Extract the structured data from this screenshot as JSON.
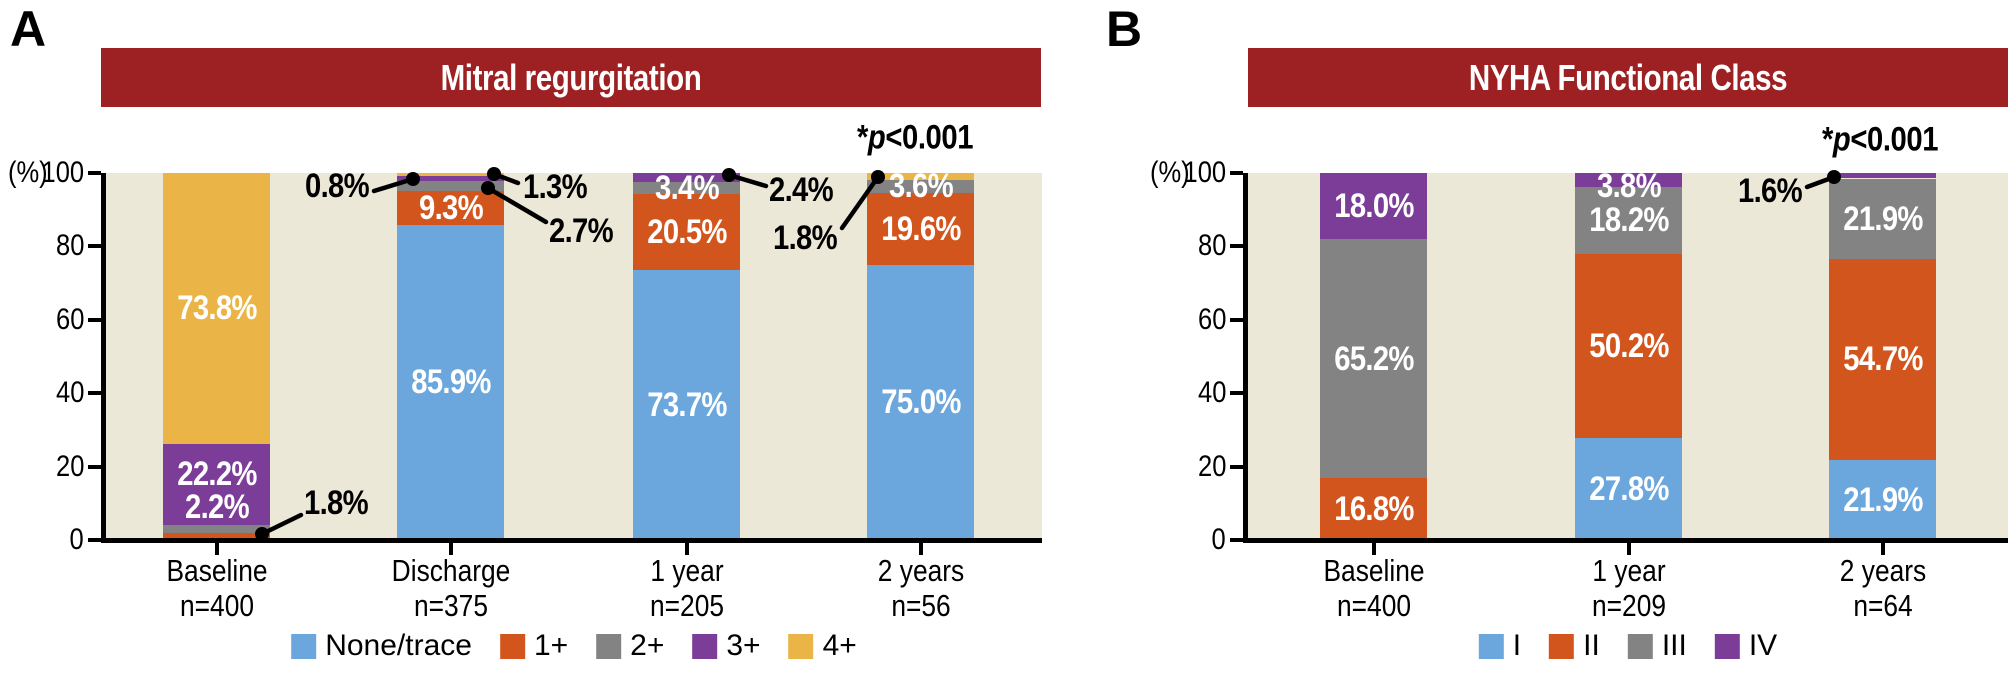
{
  "figure": {
    "background": "#ffffff",
    "plot_background": "#ece8d7",
    "banner_color": "#9d2022",
    "axis_color": "#000000",
    "bar_label_color": "#ffffff"
  },
  "panel_a": {
    "corner_label": "A",
    "title": "Mitral regurgitation",
    "significance": {
      "star": "*",
      "p_symbol": "p",
      "comparison": "<0.001"
    },
    "y_axis": {
      "unit": "(%)",
      "ticks": [
        "100",
        "80",
        "60",
        "40",
        "20",
        "0"
      ]
    },
    "legend": [
      {
        "label": "None/trace",
        "color": "#6ba7dc"
      },
      {
        "label": "1+",
        "color": "#d2551d"
      },
      {
        "label": "2+",
        "color": "#838383"
      },
      {
        "label": "3+",
        "color": "#7c3d98"
      },
      {
        "label": "4+",
        "color": "#eab447"
      }
    ],
    "categories": [
      {
        "label": "Baseline",
        "n": "n=400"
      },
      {
        "label": "Discharge",
        "n": "n=375"
      },
      {
        "label": "1 year",
        "n": "n=205"
      },
      {
        "label": "2 years",
        "n": "n=56"
      }
    ]
  },
  "panel_b": {
    "corner_label": "B",
    "title": "NYHA Functional Class",
    "significance": {
      "star": "*",
      "p_symbol": "p",
      "comparison": "<0.001"
    },
    "y_axis": {
      "unit": "(%)",
      "ticks": [
        "100",
        "80",
        "60",
        "40",
        "20",
        "0"
      ]
    },
    "legend": [
      {
        "label": "I",
        "color": "#6ba7dc"
      },
      {
        "label": "II",
        "color": "#d2551d"
      },
      {
        "label": "III",
        "color": "#838383"
      },
      {
        "label": "IV",
        "color": "#7c3d98"
      }
    ],
    "categories": [
      {
        "label": "Baseline",
        "n": "n=400"
      },
      {
        "label": "1 year",
        "n": "n=209"
      },
      {
        "label": "2 years",
        "n": "n=64"
      }
    ]
  },
  "chart_data": [
    {
      "type": "bar",
      "stacked": true,
      "title": "Mitral regurgitation",
      "categories": [
        "Baseline n=400",
        "Discharge n=375",
        "1 year n=205",
        "2 years n=56"
      ],
      "series": [
        {
          "name": "None/trace",
          "values": [
            0,
            85.9,
            73.7,
            75.0
          ]
        },
        {
          "name": "1+",
          "values": [
            1.8,
            9.3,
            20.5,
            19.6
          ]
        },
        {
          "name": "2+",
          "values": [
            2.2,
            2.7,
            3.4,
            3.6
          ]
        },
        {
          "name": "3+",
          "values": [
            22.2,
            1.3,
            2.4,
            0
          ]
        },
        {
          "name": "4+",
          "values": [
            73.8,
            0.8,
            0,
            1.8
          ]
        }
      ],
      "ylabel": "(%)",
      "ylim": [
        0,
        100
      ],
      "grid": false,
      "legend_position": "bottom",
      "annotation": "*p<0.001"
    },
    {
      "type": "bar",
      "stacked": true,
      "title": "NYHA Functional Class",
      "categories": [
        "Baseline n=400",
        "1 year n=209",
        "2 years n=64"
      ],
      "series": [
        {
          "name": "I",
          "values": [
            0,
            27.8,
            21.9
          ]
        },
        {
          "name": "II",
          "values": [
            16.8,
            50.2,
            54.7
          ]
        },
        {
          "name": "III",
          "values": [
            65.2,
            18.2,
            21.9
          ]
        },
        {
          "name": "IV",
          "values": [
            18.0,
            3.8,
            1.6
          ]
        }
      ],
      "ylabel": "(%)",
      "ylim": [
        0,
        100
      ],
      "grid": false,
      "legend_position": "bottom",
      "annotation": "*p<0.001"
    }
  ]
}
